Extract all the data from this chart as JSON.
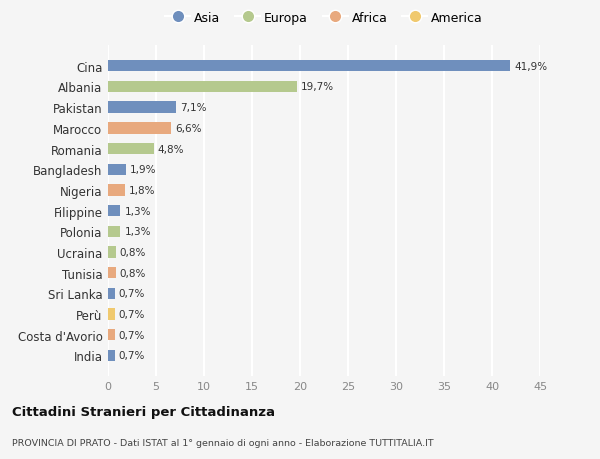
{
  "categories": [
    "Cina",
    "Albania",
    "Pakistan",
    "Marocco",
    "Romania",
    "Bangladesh",
    "Nigeria",
    "Filippine",
    "Polonia",
    "Ucraina",
    "Tunisia",
    "Sri Lanka",
    "Perù",
    "Costa d'Avorio",
    "India"
  ],
  "values": [
    41.9,
    19.7,
    7.1,
    6.6,
    4.8,
    1.9,
    1.8,
    1.3,
    1.3,
    0.8,
    0.8,
    0.7,
    0.7,
    0.7,
    0.7
  ],
  "labels": [
    "41,9%",
    "19,7%",
    "7,1%",
    "6,6%",
    "4,8%",
    "1,9%",
    "1,8%",
    "1,3%",
    "1,3%",
    "0,8%",
    "0,8%",
    "0,7%",
    "0,7%",
    "0,7%",
    "0,7%"
  ],
  "colors": [
    "#6f8fbd",
    "#b5c98e",
    "#6f8fbd",
    "#e8a97e",
    "#b5c98e",
    "#6f8fbd",
    "#e8a97e",
    "#6f8fbd",
    "#b5c98e",
    "#b5c98e",
    "#e8a97e",
    "#6f8fbd",
    "#f0c96e",
    "#e8a97e",
    "#6f8fbd"
  ],
  "legend_labels": [
    "Asia",
    "Europa",
    "Africa",
    "America"
  ],
  "legend_colors": [
    "#6f8fbd",
    "#b5c98e",
    "#e8a97e",
    "#f0c96e"
  ],
  "title": "Cittadini Stranieri per Cittadinanza",
  "subtitle": "PROVINCIA DI PRATO - Dati ISTAT al 1° gennaio di ogni anno - Elaborazione TUTTITALIA.IT",
  "xlim": [
    0,
    45
  ],
  "xticks": [
    0,
    5,
    10,
    15,
    20,
    25,
    30,
    35,
    40,
    45
  ],
  "background_color": "#f5f5f5",
  "grid_color": "#ffffff",
  "bar_height": 0.55
}
